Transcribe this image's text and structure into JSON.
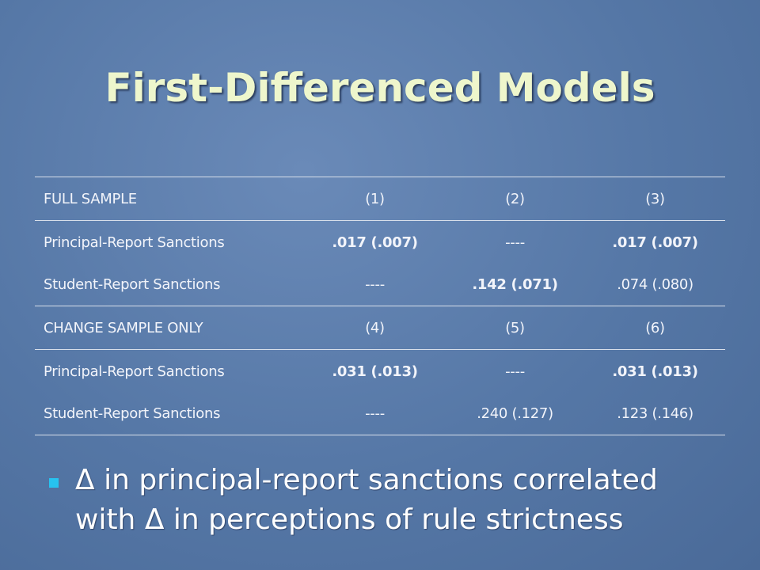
{
  "title": "First-Differenced Models",
  "table": {
    "rows": [
      [
        "FULL SAMPLE",
        "(1)",
        "(2)",
        "(3)"
      ],
      [
        "Principal-Report Sanctions",
        ".017 (.007)",
        "----",
        ".017 (.007)"
      ],
      [
        "Student-Report Sanctions",
        "----",
        ".142 (.071)",
        ".074 (.080)"
      ],
      [
        "CHANGE SAMPLE ONLY",
        "(4)",
        "(5)",
        "(6)"
      ],
      [
        "Principal-Report Sanctions",
        ".031 (.013)",
        "----",
        ".031 (.013)"
      ],
      [
        "Student-Report Sanctions",
        "----",
        ".240 (.127)",
        ".123 (.146)"
      ]
    ]
  },
  "bullets": [
    "Δ in principal-report sanctions correlated with Δ in perceptions of rule strictness"
  ]
}
